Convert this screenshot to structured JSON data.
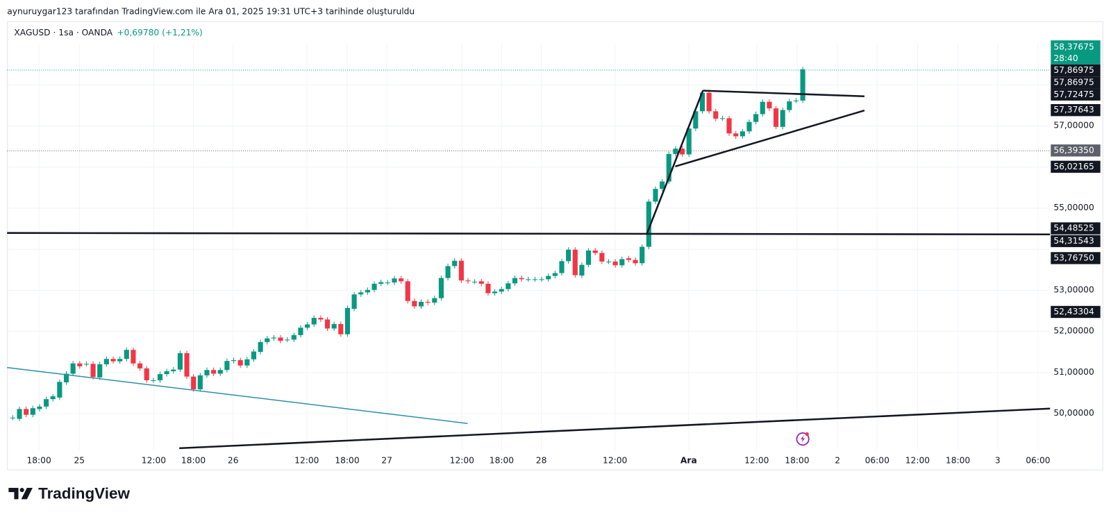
{
  "header": {
    "credit": "aynuruygar123 tarafından TradingView.com ile Ara 01, 2025 19:31 UTC+3 tarihinde oluşturuldu"
  },
  "legend": {
    "symbol": "XAGUSD · 1sa · OANDA",
    "change": "+0,69780 (+1,21%)"
  },
  "colors": {
    "up": "#089981",
    "down": "#f23645",
    "trendline_teal": "#2a8fa8",
    "drawing": "#131722",
    "event_icon": "#9c27b0"
  },
  "price_axis": {
    "ticks": [
      "57,00000",
      "55,00000",
      "53,00000",
      "52,00000",
      "51,00000",
      "50,00000"
    ],
    "current_price": "58,37675",
    "countdown": "28:40",
    "markers": [
      "57,86975",
      "57,86975",
      "57,72475",
      "57,37643",
      "56,39350",
      "56,02165",
      "54,48525",
      "54,31543",
      "53,76750",
      "52,43304"
    ]
  },
  "time_axis": [
    "18:00",
    "25",
    "12:00",
    "18:00",
    "26",
    "12:00",
    "18:00",
    "27",
    "12:00",
    "18:00",
    "28",
    "12:00",
    "Ara",
    "12:00",
    "18:00",
    "2",
    "06:00",
    "12:00",
    "18:00",
    "3",
    "06:00"
  ],
  "chart_data": {
    "type": "candlestick",
    "title": "XAGUSD · 1sa · OANDA",
    "ylim": [
      49.2,
      58.9
    ],
    "wick_pad": 0.06,
    "candles_oc": [
      [
        49.9,
        49.9
      ],
      [
        49.87,
        50.11
      ],
      [
        50.11,
        49.97
      ],
      [
        49.97,
        50.13
      ],
      [
        50.11,
        50.17
      ],
      [
        50.17,
        50.35
      ],
      [
        50.35,
        50.42
      ],
      [
        50.39,
        50.77
      ],
      [
        50.76,
        50.97
      ],
      [
        50.97,
        51.22
      ],
      [
        51.22,
        51.15
      ],
      [
        51.21,
        51.21
      ],
      [
        51.21,
        50.89
      ],
      [
        50.88,
        51.2
      ],
      [
        51.2,
        51.33
      ],
      [
        51.33,
        51.27
      ],
      [
        51.27,
        51.33
      ],
      [
        51.33,
        51.55
      ],
      [
        51.55,
        51.22
      ],
      [
        51.22,
        51.1
      ],
      [
        51.1,
        50.81
      ],
      [
        50.81,
        50.81
      ],
      [
        50.81,
        50.96
      ],
      [
        50.96,
        51.03
      ],
      [
        51.03,
        51.07
      ],
      [
        51.07,
        51.47
      ],
      [
        51.47,
        50.9
      ],
      [
        50.9,
        50.59
      ],
      [
        50.59,
        50.93
      ],
      [
        50.93,
        51.06
      ],
      [
        51.06,
        50.97
      ],
      [
        50.97,
        51.06
      ],
      [
        51.06,
        51.28
      ],
      [
        51.28,
        51.3
      ],
      [
        51.3,
        51.17
      ],
      [
        51.17,
        51.32
      ],
      [
        51.32,
        51.51
      ],
      [
        51.5,
        51.74
      ],
      [
        51.74,
        51.83
      ],
      [
        51.83,
        51.85
      ],
      [
        51.85,
        51.77
      ],
      [
        51.8,
        51.8
      ],
      [
        51.8,
        51.91
      ],
      [
        51.91,
        52.09
      ],
      [
        52.09,
        52.17
      ],
      [
        52.17,
        52.33
      ],
      [
        52.33,
        52.29
      ],
      [
        52.29,
        52.07
      ],
      [
        52.07,
        52.18
      ],
      [
        52.18,
        51.93
      ],
      [
        51.93,
        52.57
      ],
      [
        52.55,
        52.9
      ],
      [
        52.9,
        52.95
      ],
      [
        52.95,
        53.01
      ],
      [
        53.01,
        53.16
      ],
      [
        53.16,
        53.2
      ],
      [
        53.19,
        53.19
      ],
      [
        53.19,
        53.29
      ],
      [
        53.29,
        53.22
      ],
      [
        53.22,
        52.74
      ],
      [
        52.74,
        52.61
      ],
      [
        52.61,
        52.72
      ],
      [
        52.72,
        52.7
      ],
      [
        52.7,
        52.81
      ],
      [
        52.81,
        53.3
      ],
      [
        53.3,
        53.59
      ],
      [
        53.59,
        53.72
      ],
      [
        53.72,
        53.24
      ],
      [
        53.24,
        53.22
      ],
      [
        53.21,
        53.21
      ],
      [
        53.22,
        53.16
      ],
      [
        53.16,
        52.93
      ],
      [
        52.93,
        52.97
      ],
      [
        52.97,
        53.03
      ],
      [
        53.03,
        53.17
      ],
      [
        53.17,
        53.3
      ],
      [
        53.3,
        53.27
      ],
      [
        53.27,
        53.27
      ],
      [
        53.27,
        53.27
      ],
      [
        53.27,
        53.27
      ],
      [
        53.27,
        53.35
      ],
      [
        53.35,
        53.42
      ],
      [
        53.42,
        53.71
      ],
      [
        53.71,
        53.99
      ],
      [
        53.99,
        53.37
      ],
      [
        53.36,
        53.62
      ],
      [
        53.62,
        53.97
      ],
      [
        53.97,
        53.91
      ],
      [
        53.91,
        53.7
      ],
      [
        53.7,
        53.7
      ],
      [
        53.7,
        53.61
      ],
      [
        53.61,
        53.76
      ],
      [
        53.78,
        53.74
      ],
      [
        53.74,
        53.66
      ],
      [
        53.66,
        54.06
      ],
      [
        54.06,
        55.16
      ],
      [
        55.16,
        55.47
      ],
      [
        55.47,
        55.65
      ],
      [
        55.65,
        56.32
      ],
      [
        56.32,
        56.45
      ],
      [
        56.45,
        56.31
      ],
      [
        56.31,
        56.94
      ],
      [
        56.94,
        57.36
      ],
      [
        57.36,
        57.81
      ],
      [
        57.81,
        57.36
      ],
      [
        57.36,
        57.18
      ],
      [
        57.19,
        57.19
      ],
      [
        57.19,
        56.82
      ],
      [
        56.82,
        56.75
      ],
      [
        56.75,
        56.87
      ],
      [
        56.87,
        57.1
      ],
      [
        57.1,
        57.29
      ],
      [
        57.29,
        57.59
      ],
      [
        57.59,
        57.43
      ],
      [
        57.43,
        56.98
      ],
      [
        56.98,
        57.39
      ],
      [
        57.39,
        57.6
      ],
      [
        57.62,
        57.62
      ],
      [
        57.62,
        58.38
      ]
    ],
    "last_price": 58.37675,
    "reference_price": 56.3935
  },
  "branding": {
    "logo_text": "TradingView"
  }
}
